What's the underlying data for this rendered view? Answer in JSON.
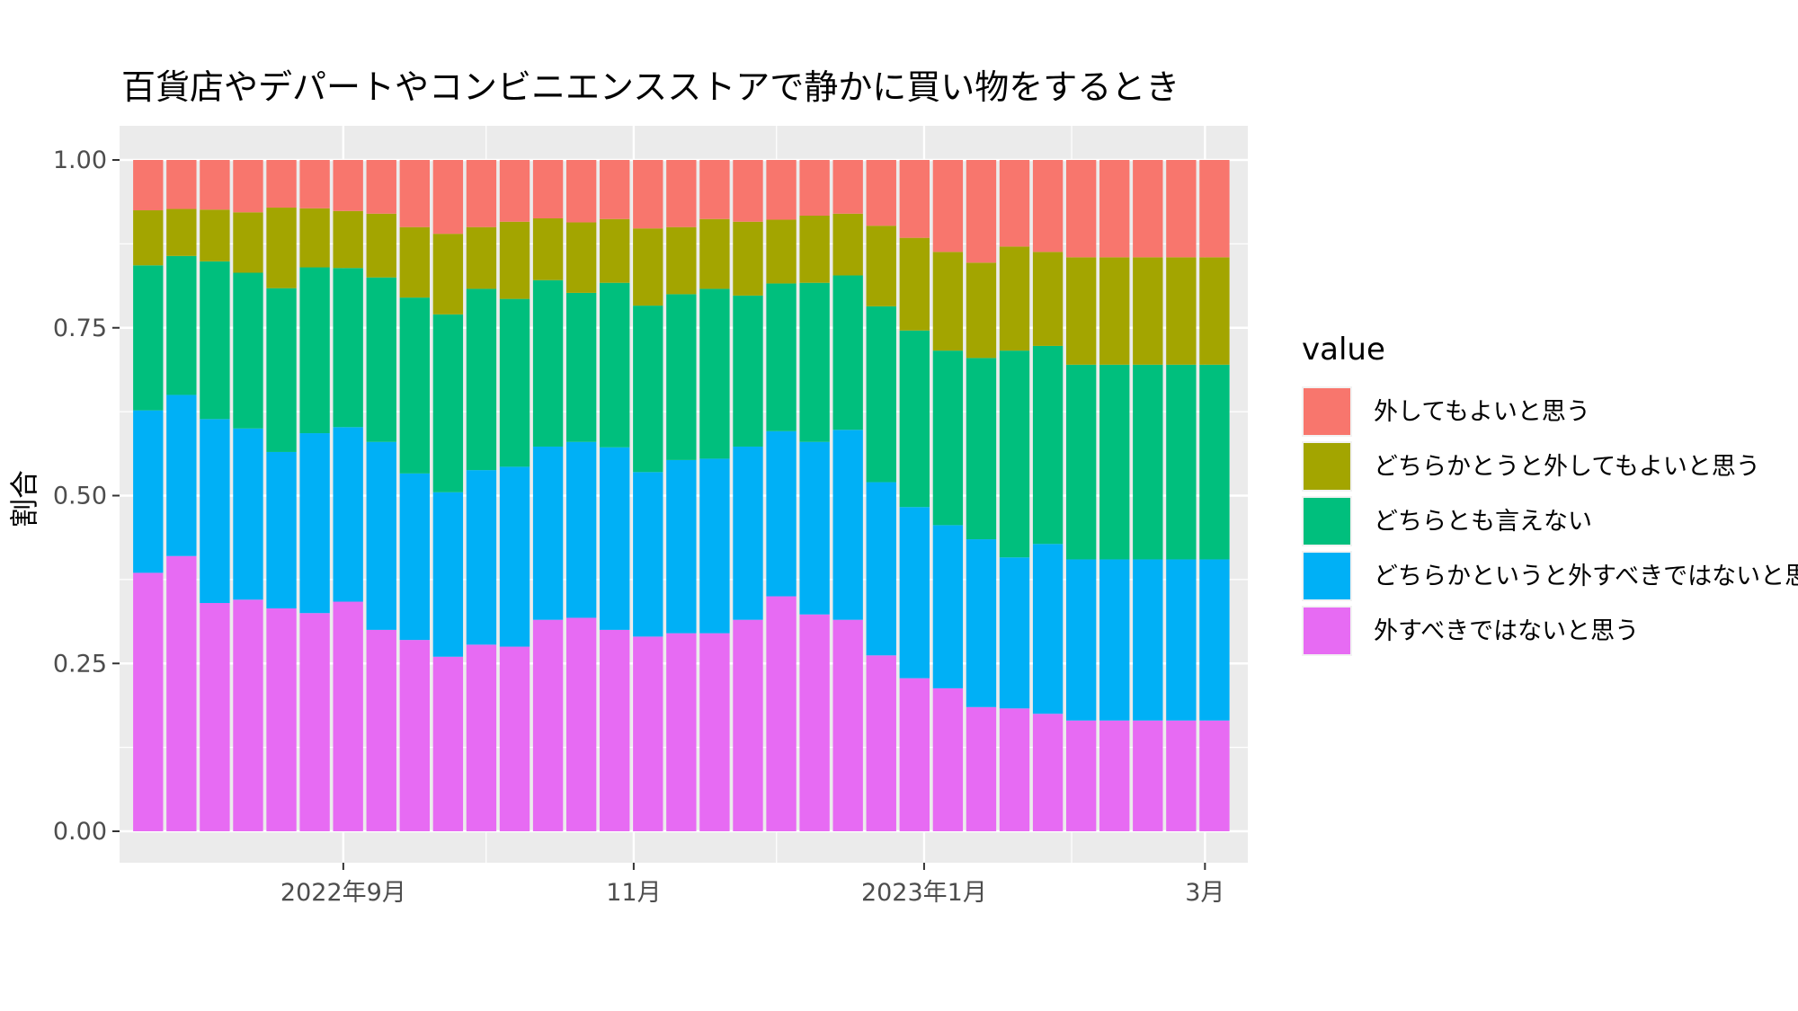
{
  "chart_data": {
    "type": "bar",
    "stacked": true,
    "normalized": true,
    "title": "百貨店やデパートやコンビニエンスストアで静かに買い物をするとき",
    "xlabel": "",
    "ylabel": "割合",
    "ylim": [
      0,
      1
    ],
    "yticks": [
      "0.00",
      "0.25",
      "0.50",
      "0.75",
      "1.00"
    ],
    "xaxis": {
      "type": "date",
      "range": [
        "2022-07-16",
        "2023-03-10"
      ],
      "ticks": [
        {
          "date": "2022-09-01",
          "label": "2022年9月"
        },
        {
          "date": "2022-11-01",
          "label": "11月"
        },
        {
          "date": "2023-01-01",
          "label": "2023年1月"
        },
        {
          "date": "2023-03-01",
          "label": "3月"
        }
      ],
      "minor_ticks": [
        "2022-10-01",
        "2022-12-01",
        "2023-02-01"
      ]
    },
    "grid": true,
    "background": "#EBEBEB",
    "legend": {
      "title": "value",
      "position": "right"
    },
    "x": [
      "2022-07-22",
      "2022-07-29",
      "2022-08-05",
      "2022-08-12",
      "2022-08-19",
      "2022-08-26",
      "2022-09-02",
      "2022-09-09",
      "2022-09-16",
      "2022-09-23",
      "2022-09-30",
      "2022-10-07",
      "2022-10-14",
      "2022-10-21",
      "2022-10-28",
      "2022-11-04",
      "2022-11-11",
      "2022-11-18",
      "2022-11-25",
      "2022-12-02",
      "2022-12-09",
      "2022-12-16",
      "2022-12-23",
      "2022-12-30",
      "2023-01-06",
      "2023-01-13",
      "2023-01-20",
      "2023-01-27",
      "2023-02-03",
      "2023-02-10",
      "2023-02-17",
      "2023-02-24",
      "2023-03-03"
    ],
    "series": [
      {
        "name": "外すべきではないと思う",
        "color": "#E76BF3",
        "values": [
          0.385,
          0.41,
          0.34,
          0.345,
          0.332,
          0.325,
          0.342,
          0.3,
          0.285,
          0.26,
          0.278,
          0.275,
          0.315,
          0.318,
          0.3,
          0.29,
          0.295,
          0.295,
          0.315,
          0.35,
          0.323,
          0.315,
          0.262,
          0.228,
          0.213,
          0.185,
          0.183,
          0.175,
          0.165,
          0.165,
          0.165,
          0.165,
          0.165
        ]
      },
      {
        "name": "どちらかというと外すべきではないと思う",
        "color": "#00B0F6",
        "values": [
          0.242,
          0.24,
          0.274,
          0.255,
          0.233,
          0.268,
          0.26,
          0.28,
          0.248,
          0.245,
          0.26,
          0.268,
          0.258,
          0.262,
          0.272,
          0.245,
          0.258,
          0.26,
          0.258,
          0.246,
          0.257,
          0.283,
          0.258,
          0.255,
          0.243,
          0.25,
          0.225,
          0.253,
          0.24,
          0.24,
          0.24,
          0.24,
          0.24
        ]
      },
      {
        "name": "どちらとも言えない",
        "color": "#00BF7D",
        "values": [
          0.216,
          0.207,
          0.235,
          0.232,
          0.244,
          0.247,
          0.237,
          0.245,
          0.262,
          0.265,
          0.27,
          0.25,
          0.248,
          0.222,
          0.245,
          0.248,
          0.247,
          0.253,
          0.225,
          0.22,
          0.237,
          0.23,
          0.262,
          0.263,
          0.26,
          0.27,
          0.308,
          0.295,
          0.29,
          0.29,
          0.29,
          0.29,
          0.29
        ]
      },
      {
        "name": "どちらかとうと外してもよいと思う",
        "color": "#A3A500",
        "values": [
          0.082,
          0.07,
          0.077,
          0.09,
          0.12,
          0.088,
          0.085,
          0.095,
          0.105,
          0.12,
          0.092,
          0.115,
          0.092,
          0.105,
          0.095,
          0.115,
          0.1,
          0.104,
          0.11,
          0.095,
          0.1,
          0.092,
          0.12,
          0.138,
          0.147,
          0.142,
          0.155,
          0.14,
          0.16,
          0.16,
          0.16,
          0.16,
          0.16
        ]
      },
      {
        "name": "外してもよいと思う",
        "color": "#F8766D",
        "values": [
          0.075,
          0.073,
          0.074,
          0.078,
          0.071,
          0.072,
          0.076,
          0.08,
          0.1,
          0.11,
          0.1,
          0.092,
          0.087,
          0.093,
          0.088,
          0.102,
          0.1,
          0.088,
          0.092,
          0.089,
          0.083,
          0.08,
          0.098,
          0.116,
          0.137,
          0.153,
          0.129,
          0.137,
          0.145,
          0.145,
          0.145,
          0.145,
          0.145
        ]
      }
    ]
  }
}
